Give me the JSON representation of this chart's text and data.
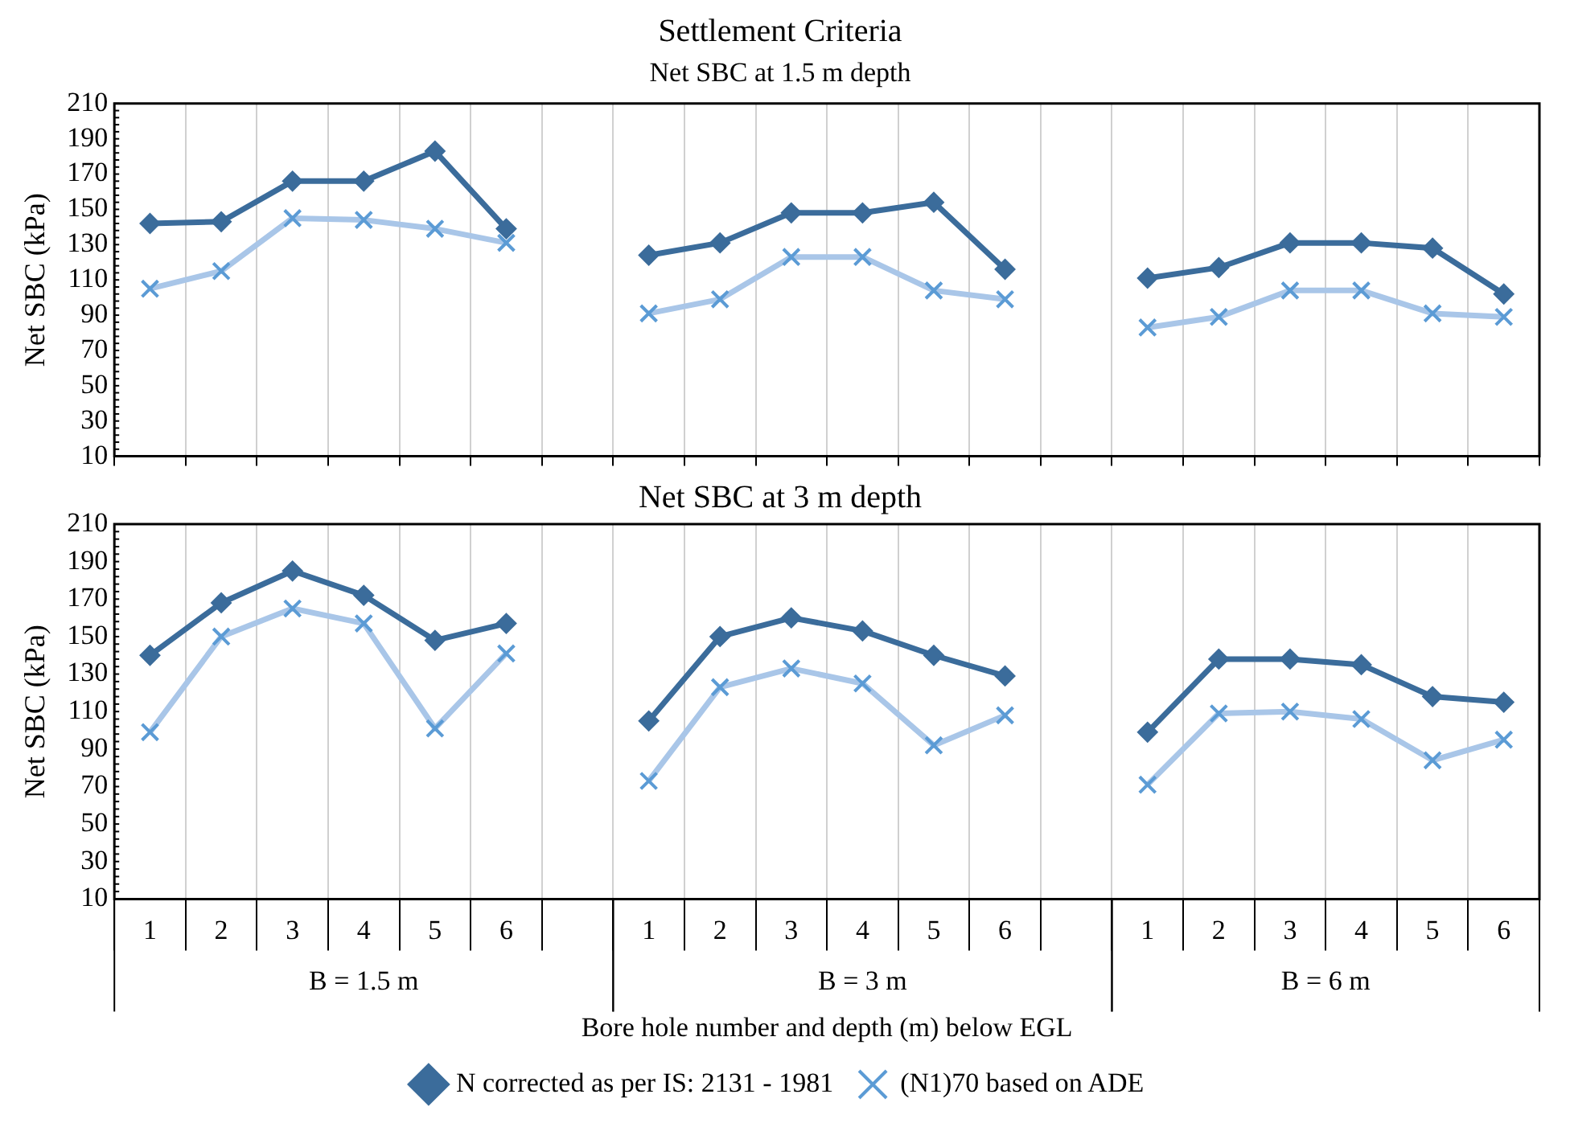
{
  "chart_data": [
    {
      "type": "line",
      "title": "Settlement Criteria",
      "subtitle": "Net SBC at 1.5 m depth",
      "ylabel": "Net SBC (kPa)",
      "categories": [
        "1",
        "2",
        "3",
        "4",
        "5",
        "6",
        null,
        "1",
        "2",
        "3",
        "4",
        "5",
        "6",
        null,
        "1",
        "2",
        "3",
        "4",
        "5",
        "6"
      ],
      "series": [
        {
          "color": "#3b6c9b",
          "marker": "diamond",
          "values": [
            142,
            143,
            166,
            166,
            183,
            139,
            null,
            124,
            131,
            148,
            148,
            154,
            116,
            null,
            111,
            117,
            131,
            131,
            128,
            102
          ]
        },
        {
          "color": "#a9c6e8",
          "marker": "cross",
          "values": [
            105,
            115,
            145,
            144,
            139,
            131,
            null,
            91,
            99,
            123,
            123,
            104,
            99,
            null,
            83,
            89,
            104,
            104,
            91,
            89
          ]
        }
      ],
      "ylim": [
        10,
        210
      ],
      "yticks": [
        10,
        30,
        50,
        70,
        90,
        110,
        130,
        150,
        170,
        190,
        210
      ],
      "grid": "x",
      "tick_labels": "y",
      "legend": false
    },
    {
      "type": "line",
      "title": "Net SBC at 3 m depth",
      "xlabel": "Bore hole number and depth (m) below EGL",
      "ylabel": "Net SBC (kPa)",
      "categories": [
        "1",
        "2",
        "3",
        "4",
        "5",
        "6",
        null,
        "1",
        "2",
        "3",
        "4",
        "5",
        "6",
        null,
        "1",
        "2",
        "3",
        "4",
        "5",
        "6"
      ],
      "series": [
        {
          "name": "N corrected as per IS: 2131 - 1981",
          "color": "#3b6c9b",
          "marker": "diamond",
          "values": [
            140,
            168,
            185,
            172,
            148,
            157,
            null,
            105,
            150,
            160,
            153,
            140,
            129,
            null,
            99,
            138,
            138,
            135,
            118,
            115
          ]
        },
        {
          "name": "(N1)70 based on ADE",
          "color": "#a9c6e8",
          "marker": "cross",
          "values": [
            99,
            150,
            165,
            157,
            101,
            141,
            null,
            73,
            123,
            133,
            125,
            92,
            108,
            null,
            71,
            109,
            110,
            106,
            84,
            95
          ]
        }
      ],
      "ylim": [
        10,
        210
      ],
      "yticks": [
        10,
        30,
        50,
        70,
        90,
        110,
        130,
        150,
        170,
        190,
        210
      ],
      "grid": "x",
      "legend": "bottom",
      "annotations": [
        "B = 1.5 m",
        "B = 3 m",
        "B = 6 m"
      ]
    }
  ]
}
